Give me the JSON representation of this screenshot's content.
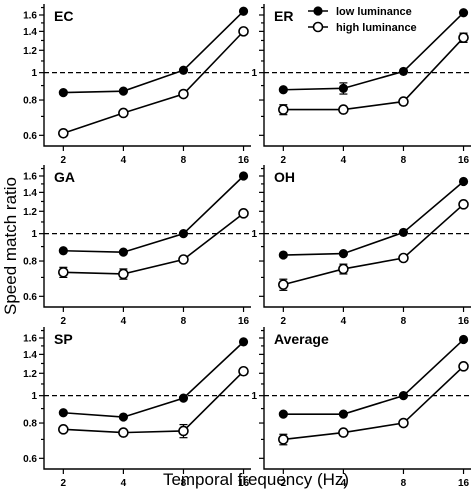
{
  "figure": {
    "ylabel": "Speed match ratio",
    "xlabel": "Temporal frequency (Hz)",
    "legend": {
      "low_label": "low luminance",
      "high_label": "high luminance"
    },
    "colors": {
      "ink": "#000000",
      "background": "#ffffff",
      "open_fill": "#ffffff"
    }
  },
  "chart_data": [
    {
      "type": "line",
      "title": "EC",
      "x": [
        2,
        4,
        8,
        16
      ],
      "x_scale": "log2",
      "y_scale": "log",
      "ylim": [
        0.55,
        1.75
      ],
      "xticks": [
        "2",
        "4",
        "8",
        "16"
      ],
      "yticks": [
        "0.6",
        "0.8",
        "1",
        "1.2",
        "1.4",
        "1.6"
      ],
      "reference_line": 1,
      "series": [
        {
          "name": "low luminance",
          "marker": "filled",
          "values": [
            0.85,
            0.86,
            1.02,
            1.65
          ]
        },
        {
          "name": "high luminance",
          "marker": "open",
          "values": [
            0.61,
            0.72,
            0.84,
            1.4
          ]
        }
      ]
    },
    {
      "type": "line",
      "title": "ER",
      "x": [
        2,
        4,
        8,
        16
      ],
      "x_scale": "log2",
      "y_scale": "log",
      "ylim": [
        0.55,
        1.75
      ],
      "xticks": [
        "2",
        "4",
        "8",
        "16"
      ],
      "yticks": [
        "1"
      ],
      "reference_line": 1,
      "series": [
        {
          "name": "low luminance",
          "marker": "filled",
          "values": [
            0.87,
            0.88,
            1.01,
            1.63
          ],
          "error": [
            0,
            0.04,
            0,
            0
          ]
        },
        {
          "name": "high luminance",
          "marker": "open",
          "values": [
            0.74,
            0.74,
            0.79,
            1.33
          ],
          "error": [
            0.03,
            0,
            0,
            0.05
          ]
        }
      ]
    },
    {
      "type": "line",
      "title": "GA",
      "x": [
        2,
        4,
        8,
        16
      ],
      "x_scale": "log2",
      "y_scale": "log",
      "ylim": [
        0.55,
        1.75
      ],
      "xticks": [
        "2",
        "4",
        "8",
        "16"
      ],
      "yticks": [
        "0.6",
        "0.8",
        "1",
        "1.2",
        "1.4",
        "1.6"
      ],
      "reference_line": 1,
      "series": [
        {
          "name": "low luminance",
          "marker": "filled",
          "values": [
            0.87,
            0.86,
            1.0,
            1.6
          ]
        },
        {
          "name": "high luminance",
          "marker": "open",
          "values": [
            0.73,
            0.72,
            0.81,
            1.18
          ],
          "error": [
            0.03,
            0.03,
            0,
            0
          ]
        }
      ]
    },
    {
      "type": "line",
      "title": "OH",
      "x": [
        2,
        4,
        8,
        16
      ],
      "x_scale": "log2",
      "y_scale": "log",
      "ylim": [
        0.55,
        1.75
      ],
      "xticks": [
        "2",
        "4",
        "8",
        "16"
      ],
      "yticks": [
        "1"
      ],
      "reference_line": 1,
      "series": [
        {
          "name": "low luminance",
          "marker": "filled",
          "values": [
            0.84,
            0.85,
            1.01,
            1.53
          ]
        },
        {
          "name": "high luminance",
          "marker": "open",
          "values": [
            0.66,
            0.75,
            0.82,
            1.27
          ],
          "error": [
            0.03,
            0.03,
            0,
            0
          ]
        }
      ]
    },
    {
      "type": "line",
      "title": "SP",
      "x": [
        2,
        4,
        8,
        16
      ],
      "x_scale": "log2",
      "y_scale": "log",
      "ylim": [
        0.55,
        1.75
      ],
      "xticks": [
        "2",
        "4",
        "8",
        "16"
      ],
      "yticks": [
        "0.6",
        "0.8",
        "1",
        "1.2",
        "1.4",
        "1.6"
      ],
      "reference_line": 1,
      "series": [
        {
          "name": "low luminance",
          "marker": "filled",
          "values": [
            0.87,
            0.84,
            0.98,
            1.55
          ]
        },
        {
          "name": "high luminance",
          "marker": "open",
          "values": [
            0.76,
            0.74,
            0.75,
            1.22
          ],
          "error": [
            0,
            0,
            0.04,
            0
          ]
        }
      ]
    },
    {
      "type": "line",
      "title": "Average",
      "x": [
        2,
        4,
        8,
        16
      ],
      "x_scale": "log2",
      "y_scale": "log",
      "ylim": [
        0.55,
        1.75
      ],
      "xticks": [
        "2",
        "4",
        "8",
        "16"
      ],
      "yticks": [
        "1"
      ],
      "reference_line": 1,
      "series": [
        {
          "name": "low luminance",
          "marker": "filled",
          "values": [
            0.86,
            0.86,
            1.0,
            1.58
          ]
        },
        {
          "name": "high luminance",
          "marker": "open",
          "values": [
            0.7,
            0.74,
            0.8,
            1.27
          ],
          "error": [
            0.03,
            0,
            0,
            0
          ]
        }
      ]
    }
  ]
}
